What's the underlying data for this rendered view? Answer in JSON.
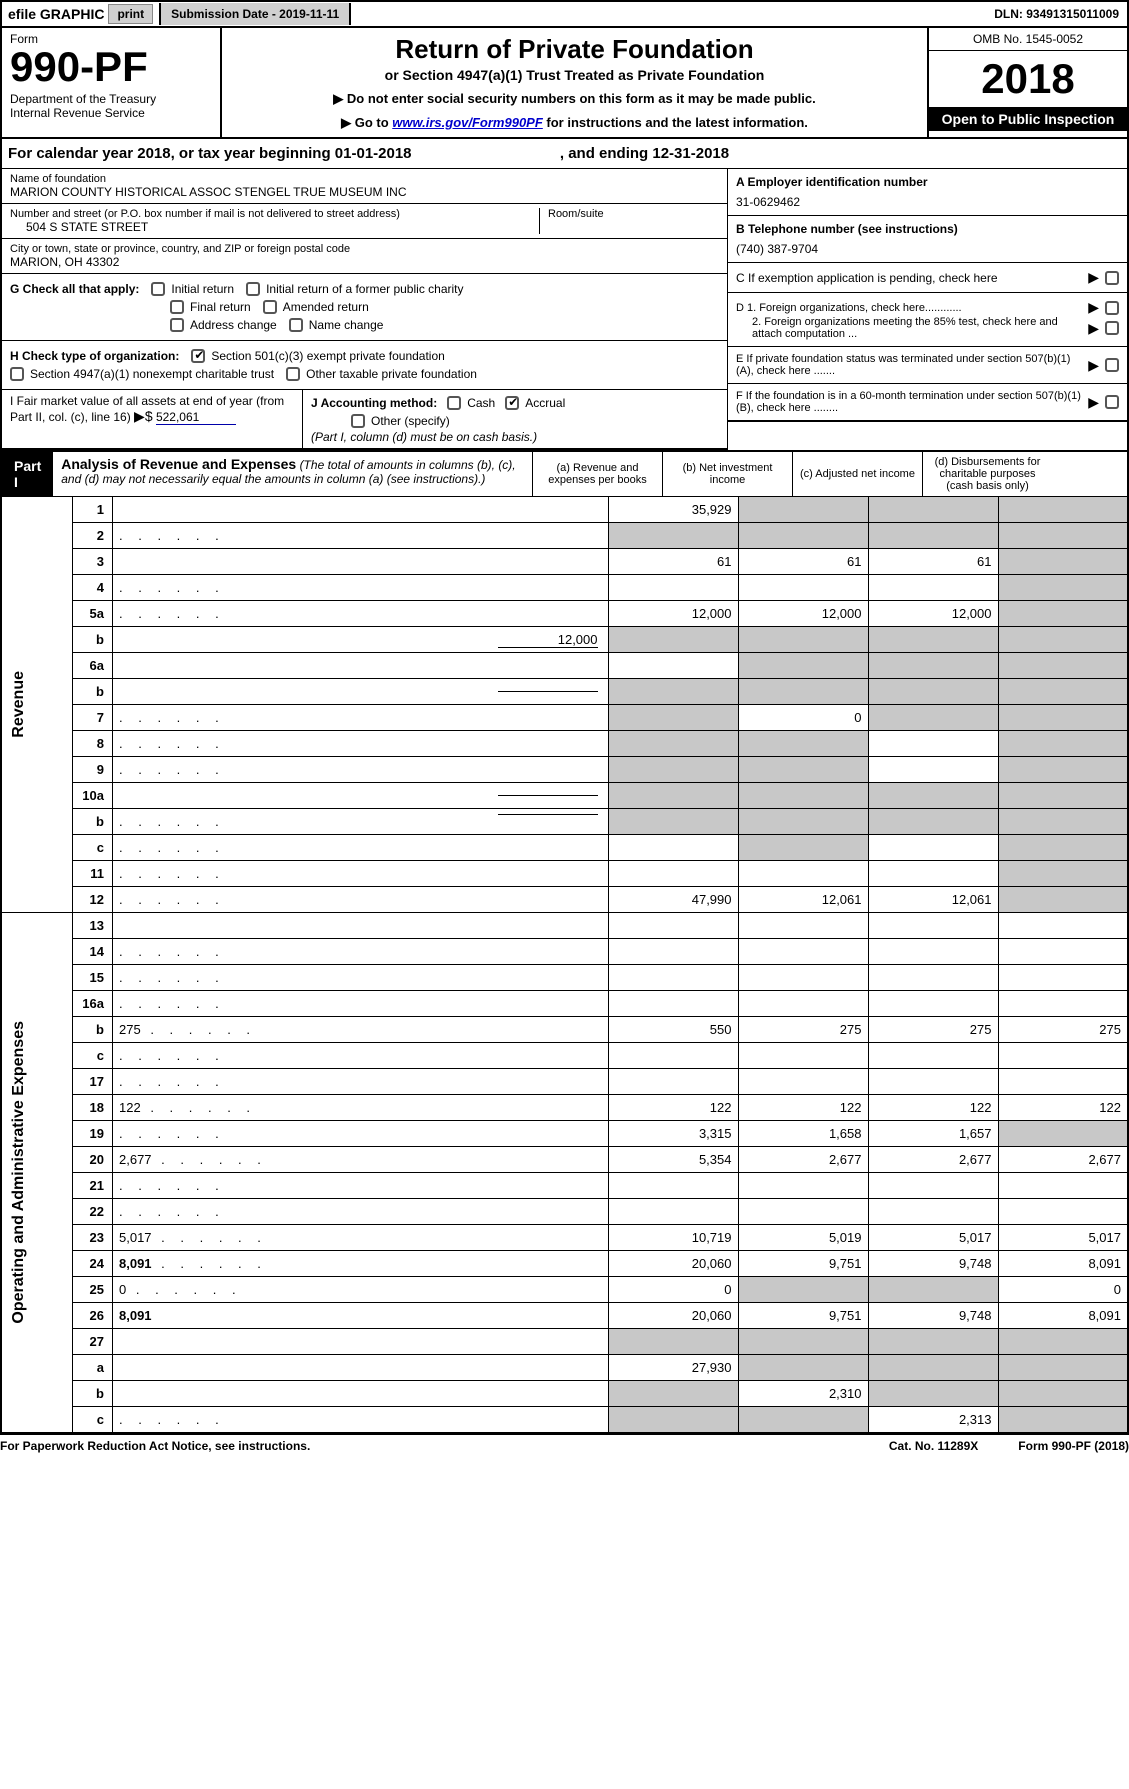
{
  "topbar": {
    "efile": "efile GRAPHIC",
    "print": "print",
    "subdate": "Submission Date - 2019-11-11",
    "dln": "DLN: 93491315011009"
  },
  "header": {
    "form_label": "Form",
    "form_no": "990-PF",
    "dept": "Department of the Treasury\nInternal Revenue Service",
    "title": "Return of Private Foundation",
    "subtitle": "or Section 4947(a)(1) Trust Treated as Private Foundation",
    "note1": "▶ Do not enter social security numbers on this form as it may be made public.",
    "note2_pre": "▶ Go to ",
    "note2_link": "www.irs.gov/Form990PF",
    "note2_post": " for instructions and the latest information.",
    "omb": "OMB No. 1545-0052",
    "year": "2018",
    "inspect": "Open to Public Inspection"
  },
  "calyear": {
    "text": "For calendar year 2018, or tax year beginning 01-01-2018",
    "ending": ", and ending 12-31-2018"
  },
  "info": {
    "name_label": "Name of foundation",
    "name": "MARION COUNTY HISTORICAL ASSOC STENGEL TRUE MUSEUM INC",
    "addr_label": "Number and street (or P.O. box number if mail is not delivered to street address)",
    "addr": "504 S STATE STREET",
    "room_label": "Room/suite",
    "city_label": "City or town, state or province, country, and ZIP or foreign postal code",
    "city": "MARION, OH  43302",
    "ein_label": "A Employer identification number",
    "ein": "31-0629462",
    "tel_label": "B Telephone number (see instructions)",
    "tel": "(740) 387-9704",
    "c_label": "C If exemption application is pending, check here",
    "d1": "D 1. Foreign organizations, check here............",
    "d2": "2. Foreign organizations meeting the 85% test, check here and attach computation ...",
    "e_label": "E  If private foundation status was terminated under section 507(b)(1)(A), check here .......",
    "f_label": "F  If the foundation is in a 60-month termination under section 507(b)(1)(B), check here ........"
  },
  "g": {
    "label": "G Check all that apply:",
    "opts": [
      "Initial return",
      "Initial return of a former public charity",
      "Final return",
      "Amended return",
      "Address change",
      "Name change"
    ]
  },
  "h": {
    "label": "H Check type of organization:",
    "opt1": "Section 501(c)(3) exempt private foundation",
    "opt2": "Section 4947(a)(1) nonexempt charitable trust",
    "opt3": "Other taxable private foundation"
  },
  "i": {
    "label": "I Fair market value of all assets at end of year (from Part II, col. (c), line 16)",
    "val": "522,061"
  },
  "j": {
    "label": "J Accounting method:",
    "cash": "Cash",
    "accrual": "Accrual",
    "other": "Other (specify)",
    "note": "(Part I, column (d) must be on cash basis.)"
  },
  "part1": {
    "label": "Part I",
    "title": "Analysis of Revenue and Expenses",
    "note": "(The total of amounts in columns (b), (c), and (d) may not necessarily equal the amounts in column (a) (see instructions).)",
    "col_a": "(a)   Revenue and expenses per books",
    "col_b": "(b)  Net investment income",
    "col_c": "(c)  Adjusted net income",
    "col_d": "(d)  Disbursements for charitable purposes (cash basis only)"
  },
  "sections": {
    "revenue": "Revenue",
    "expenses": "Operating and Administrative Expenses"
  },
  "rows": [
    {
      "n": "1",
      "d": "",
      "a": "35,929",
      "b": "",
      "c": "",
      "shade_b": true,
      "shade_c": true,
      "shade_d": true
    },
    {
      "n": "2",
      "d": "",
      "dots": true,
      "a": "",
      "b": "",
      "c": "",
      "shade_a": true,
      "shade_b": true,
      "shade_c": true,
      "shade_d": true
    },
    {
      "n": "3",
      "d": "",
      "a": "61",
      "b": "61",
      "c": "61",
      "shade_d": true
    },
    {
      "n": "4",
      "d": "",
      "dots": true,
      "a": "",
      "b": "",
      "c": "",
      "shade_d": true
    },
    {
      "n": "5a",
      "d": "",
      "dots": true,
      "a": "12,000",
      "b": "12,000",
      "c": "12,000",
      "shade_d": true
    },
    {
      "n": "b",
      "d": "",
      "inset": "12,000",
      "a": "",
      "b": "",
      "c": "",
      "shade_a": true,
      "shade_b": true,
      "shade_c": true,
      "shade_d": true
    },
    {
      "n": "6a",
      "d": "",
      "a": "",
      "b": "",
      "c": "",
      "shade_b": true,
      "shade_c": true,
      "shade_d": true
    },
    {
      "n": "b",
      "d": "",
      "inset": "",
      "a": "",
      "b": "",
      "c": "",
      "shade_a": true,
      "shade_b": true,
      "shade_c": true,
      "shade_d": true
    },
    {
      "n": "7",
      "d": "",
      "dots": true,
      "a": "",
      "b": "0",
      "c": "",
      "shade_a": true,
      "shade_c": true,
      "shade_d": true
    },
    {
      "n": "8",
      "d": "",
      "dots": true,
      "a": "",
      "b": "",
      "c": "",
      "shade_a": true,
      "shade_b": true,
      "shade_d": true
    },
    {
      "n": "9",
      "d": "",
      "dots": true,
      "a": "",
      "b": "",
      "c": "",
      "shade_a": true,
      "shade_b": true,
      "shade_d": true
    },
    {
      "n": "10a",
      "d": "",
      "inset": "",
      "a": "",
      "b": "",
      "c": "",
      "shade_a": true,
      "shade_b": true,
      "shade_c": true,
      "shade_d": true
    },
    {
      "n": "b",
      "d": "",
      "dots": true,
      "inset": "",
      "a": "",
      "b": "",
      "c": "",
      "shade_a": true,
      "shade_b": true,
      "shade_c": true,
      "shade_d": true
    },
    {
      "n": "c",
      "d": "",
      "dots": true,
      "a": "",
      "b": "",
      "c": "",
      "shade_b": true,
      "shade_d": true
    },
    {
      "n": "11",
      "d": "",
      "dots": true,
      "a": "",
      "b": "",
      "c": "",
      "shade_d": true
    },
    {
      "n": "12",
      "d": "",
      "bold": true,
      "dots": true,
      "a": "47,990",
      "b": "12,061",
      "c": "12,061",
      "shade_d": true
    },
    {
      "n": "13",
      "d": "",
      "a": "",
      "b": "",
      "c": ""
    },
    {
      "n": "14",
      "d": "",
      "dots": true,
      "a": "",
      "b": "",
      "c": ""
    },
    {
      "n": "15",
      "d": "",
      "dots": true,
      "a": "",
      "b": "",
      "c": ""
    },
    {
      "n": "16a",
      "d": "",
      "dots": true,
      "a": "",
      "b": "",
      "c": ""
    },
    {
      "n": "b",
      "d": "275",
      "dots": true,
      "a": "550",
      "b": "275",
      "c": "275"
    },
    {
      "n": "c",
      "d": "",
      "dots": true,
      "a": "",
      "b": "",
      "c": ""
    },
    {
      "n": "17",
      "d": "",
      "dots": true,
      "a": "",
      "b": "",
      "c": ""
    },
    {
      "n": "18",
      "d": "122",
      "dots": true,
      "a": "122",
      "b": "122",
      "c": "122"
    },
    {
      "n": "19",
      "d": "",
      "dots": true,
      "a": "3,315",
      "b": "1,658",
      "c": "1,657",
      "shade_d": true
    },
    {
      "n": "20",
      "d": "2,677",
      "dots": true,
      "a": "5,354",
      "b": "2,677",
      "c": "2,677"
    },
    {
      "n": "21",
      "d": "",
      "dots": true,
      "a": "",
      "b": "",
      "c": ""
    },
    {
      "n": "22",
      "d": "",
      "dots": true,
      "a": "",
      "b": "",
      "c": ""
    },
    {
      "n": "23",
      "d": "5,017",
      "dots": true,
      "a": "10,719",
      "b": "5,019",
      "c": "5,017"
    },
    {
      "n": "24",
      "d": "8,091",
      "bold": true,
      "dots": true,
      "a": "20,060",
      "b": "9,751",
      "c": "9,748"
    },
    {
      "n": "25",
      "d": "0",
      "dots": true,
      "a": "0",
      "b": "",
      "c": "",
      "shade_b": true,
      "shade_c": true
    },
    {
      "n": "26",
      "d": "8,091",
      "bold": true,
      "a": "20,060",
      "b": "9,751",
      "c": "9,748"
    },
    {
      "n": "27",
      "d": "",
      "a": "",
      "b": "",
      "c": "",
      "shade_a": true,
      "shade_b": true,
      "shade_c": true,
      "shade_d": true
    },
    {
      "n": "a",
      "d": "",
      "bold": true,
      "a": "27,930",
      "b": "",
      "c": "",
      "shade_b": true,
      "shade_c": true,
      "shade_d": true
    },
    {
      "n": "b",
      "d": "",
      "bold": true,
      "a": "",
      "b": "2,310",
      "c": "",
      "shade_a": true,
      "shade_c": true,
      "shade_d": true
    },
    {
      "n": "c",
      "d": "",
      "bold": true,
      "dots": true,
      "a": "",
      "b": "",
      "c": "2,313",
      "shade_a": true,
      "shade_b": true,
      "shade_d": true
    }
  ],
  "footer": {
    "left": "For Paperwork Reduction Act Notice, see instructions.",
    "mid": "Cat. No. 11289X",
    "right": "Form 990-PF (2018)"
  }
}
